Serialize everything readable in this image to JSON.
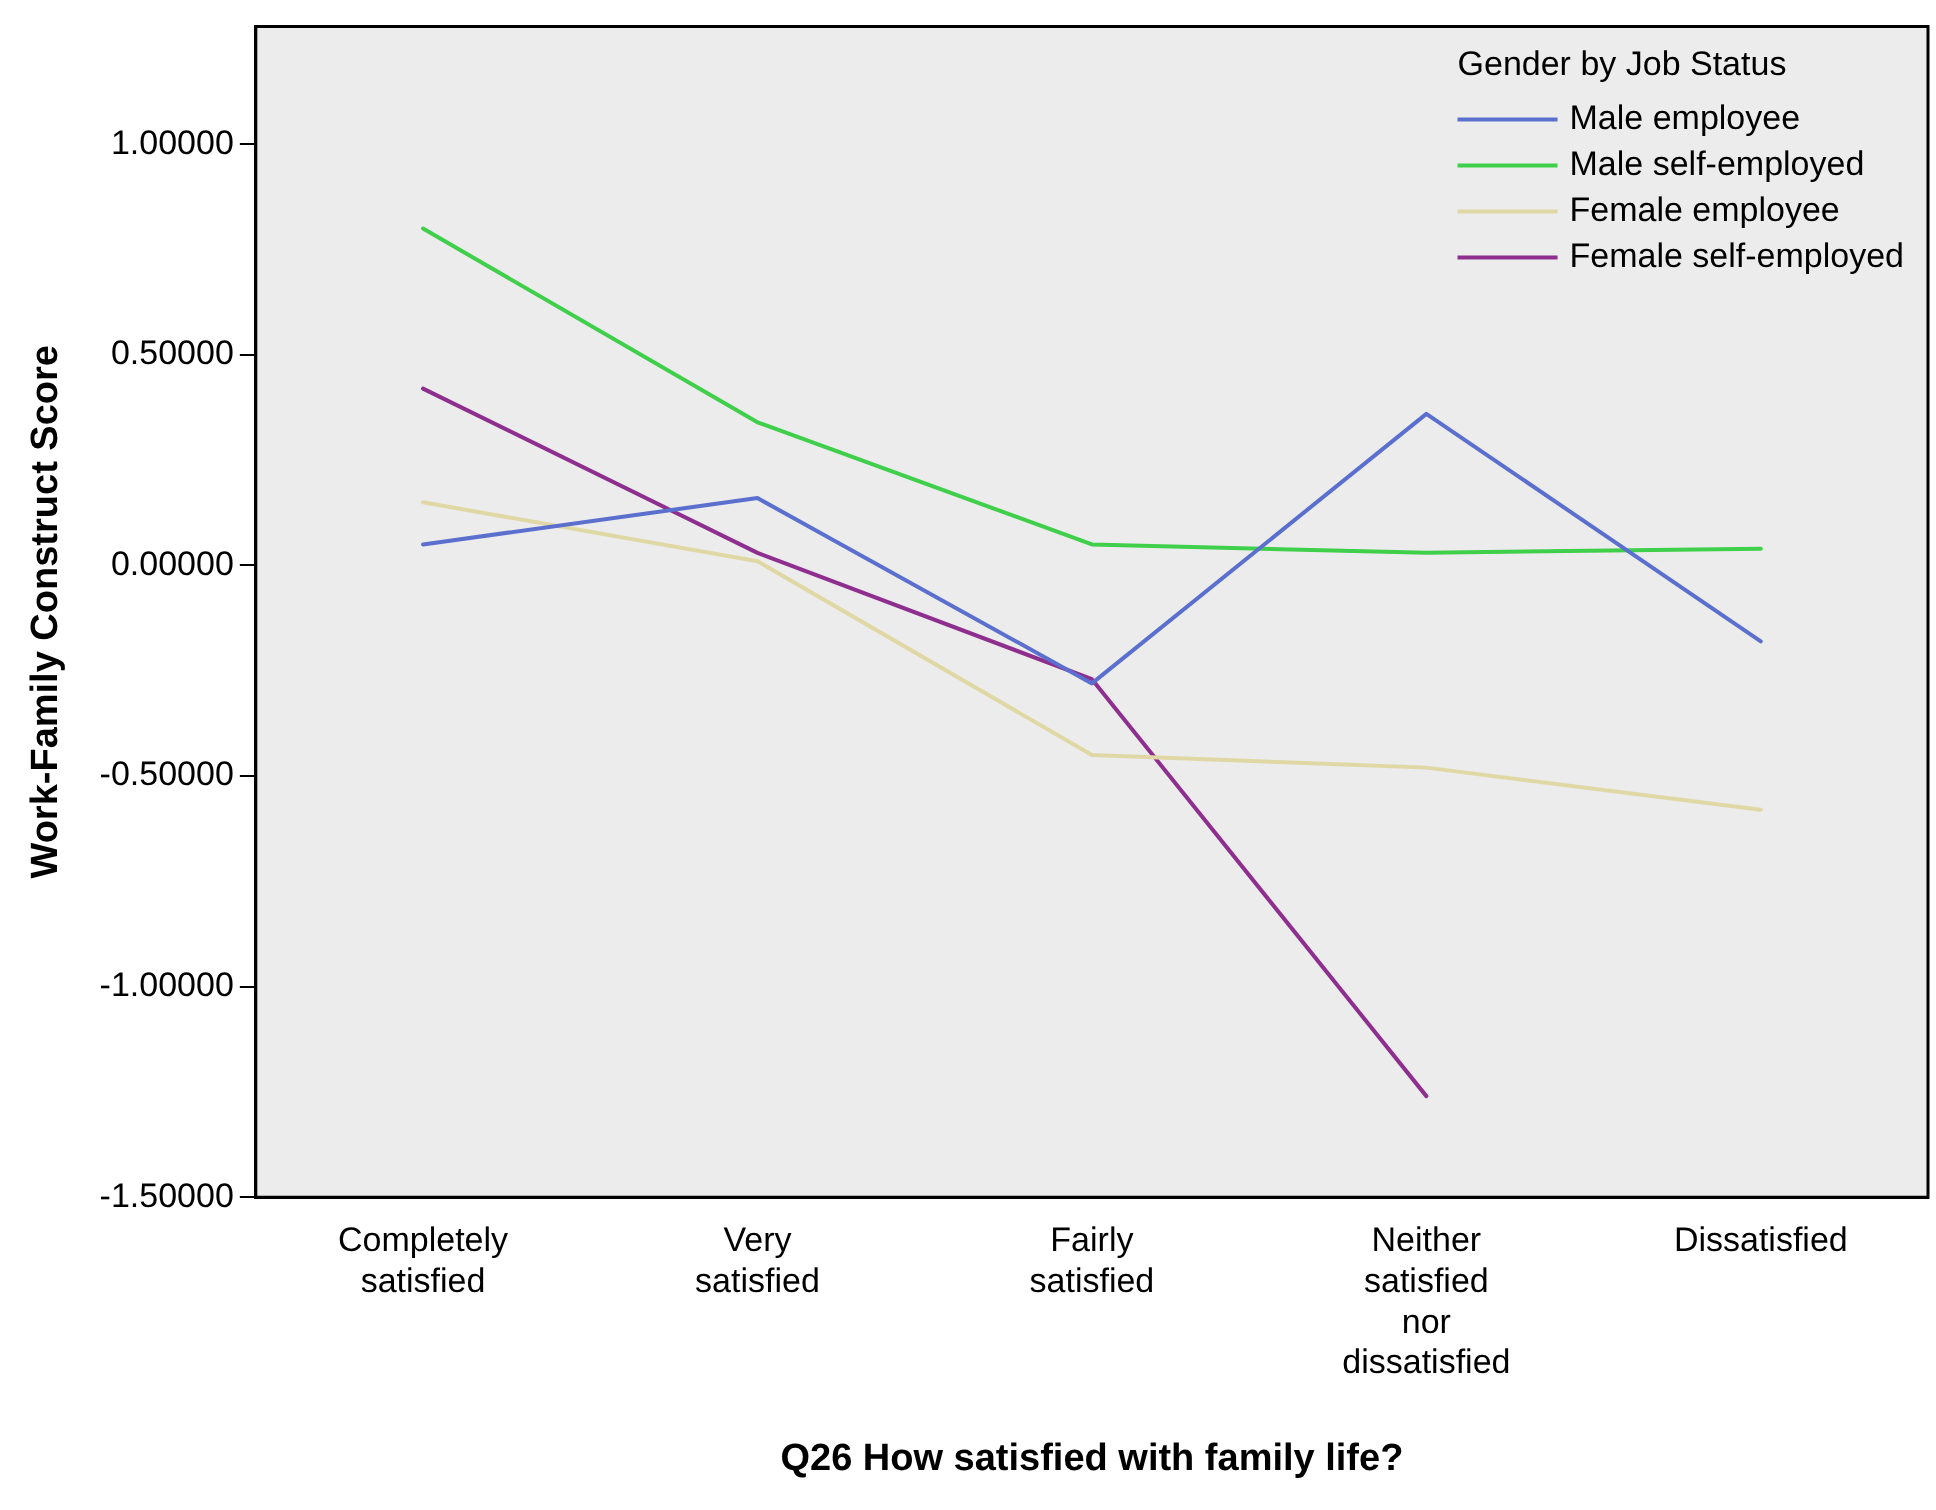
{
  "chart_data": {
    "type": "line",
    "xlabel": "Q26 How satisfied with family life?",
    "ylabel": "Work-Family Construct Score",
    "legend_title": "Gender by Job Status",
    "categories": [
      "Completely satisfied",
      "Very satisfied",
      "Fairly satisfied",
      "Neither satisfied nor dissatisfied",
      "Dissatisfied"
    ],
    "series": [
      {
        "name": "Male employee",
        "color": "#5b6fcf",
        "values": [
          0.05,
          0.16,
          -0.28,
          0.36,
          -0.18
        ]
      },
      {
        "name": "Male self-employed",
        "color": "#3fcf4a",
        "values": [
          0.8,
          0.34,
          0.05,
          0.03,
          0.04
        ]
      },
      {
        "name": "Female employee",
        "color": "#e0d8a4",
        "values": [
          0.15,
          0.01,
          -0.45,
          -0.48,
          -0.58
        ]
      },
      {
        "name": "Female self-employed",
        "color": "#8e2e8e",
        "values": [
          0.42,
          0.03,
          -0.27,
          -1.26,
          null
        ]
      }
    ],
    "ylim": [
      -1.5,
      1.28
    ],
    "yticks": [
      {
        "value": -1.5,
        "label": "-1.50000"
      },
      {
        "value": -1,
        "label": "-1.00000"
      },
      {
        "value": -0.5,
        "label": "-0.50000"
      },
      {
        "value": 0,
        "label": "0.00000"
      },
      {
        "value": 0.5,
        "label": "0.50000"
      },
      {
        "value": 1,
        "label": "1.00000"
      }
    ],
    "grid": false,
    "legend": "top right",
    "marker": "none",
    "line_style": "solid"
  }
}
